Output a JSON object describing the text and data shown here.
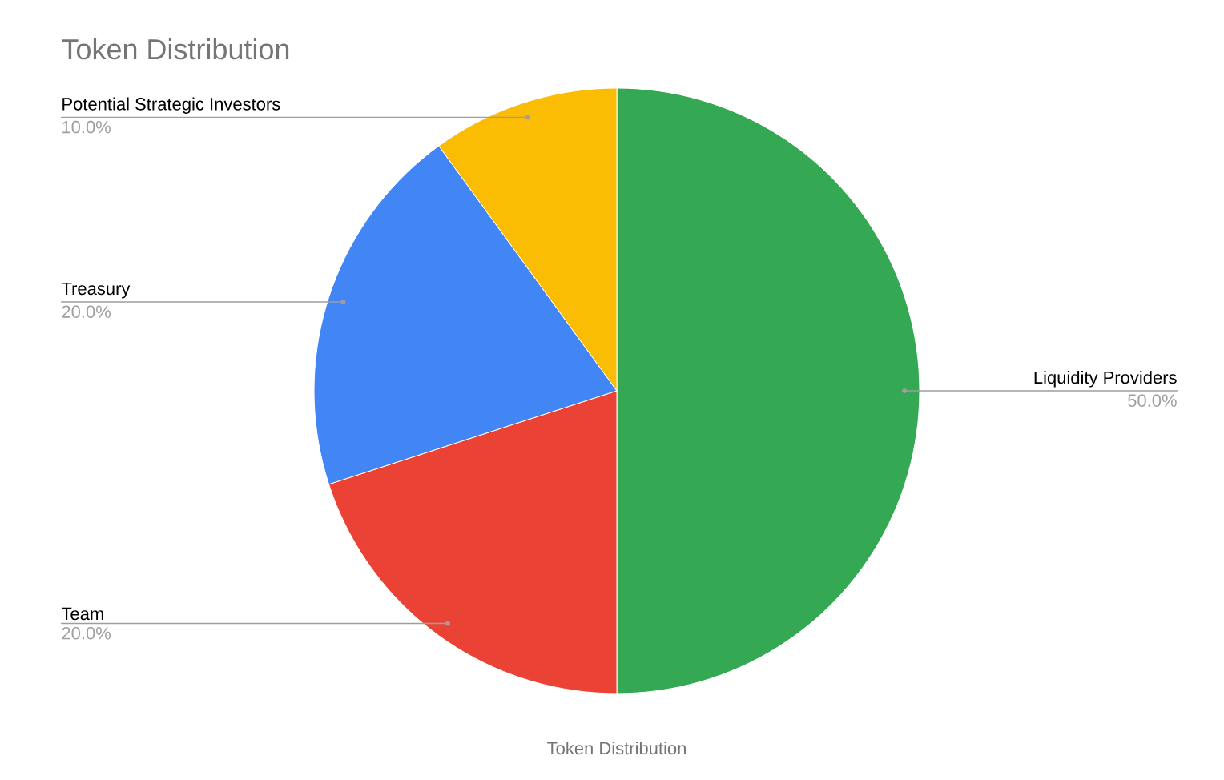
{
  "chart_data": {
    "type": "pie",
    "title": "Token Distribution",
    "xlabel": "Token Distribution",
    "categories": [
      "Liquidity Providers",
      "Team",
      "Treasury",
      "Potential Strategic Investors"
    ],
    "values": [
      50,
      20,
      20,
      10
    ],
    "colors": [
      "#34a853",
      "#ea4335",
      "#4285f4",
      "#fbbc04"
    ],
    "value_labels": [
      "50.0%",
      "20.0%",
      "20.0%",
      "10.0%"
    ]
  }
}
